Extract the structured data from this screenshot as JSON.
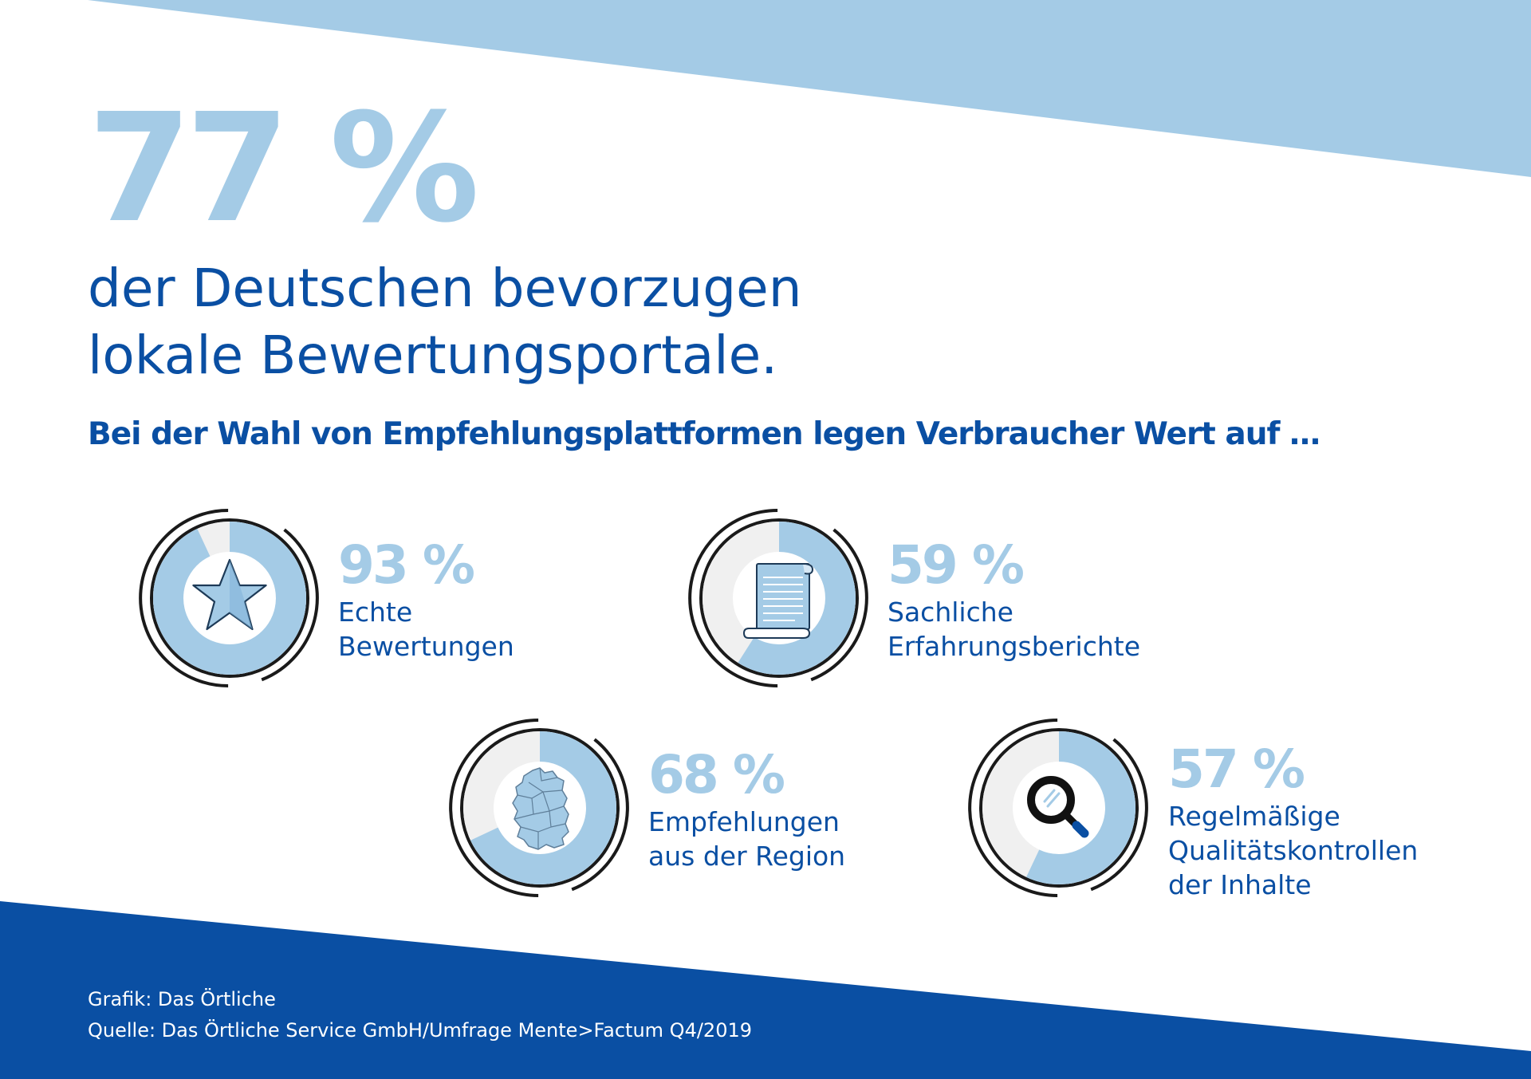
{
  "headline": {
    "value": "77 %",
    "lines": [
      "der Deutschen bevorzugen",
      "lokale Bewertungsportale."
    ]
  },
  "subheading": "Bei der Wahl von Empfehlungsplattformen legen Verbraucher Wert auf …",
  "colors": {
    "light_blue": "#a4cbe6",
    "dark_blue": "#0a4fa3",
    "ring_track": "#f0f0f0",
    "ring_outline": "#1a1a1a"
  },
  "chart_data": {
    "type": "donut",
    "unit": "%",
    "categories": [
      "Echte Bewertungen",
      "Sachliche Erfahrungsberichte",
      "Empfehlungen aus der Region",
      "Regelmäßige Qualitätskontrollen der Inhalte"
    ],
    "values": [
      93,
      59,
      68,
      57
    ]
  },
  "stats": [
    {
      "value": 93,
      "label": "93 %",
      "lines": [
        "Echte",
        "Bewertungen"
      ],
      "icon": "star-icon"
    },
    {
      "value": 59,
      "label": "59 %",
      "lines": [
        "Sachliche",
        "Erfahrungsberichte"
      ],
      "icon": "scroll-icon"
    },
    {
      "value": 68,
      "label": "68 %",
      "lines": [
        "Empfehlungen",
        "aus der Region"
      ],
      "icon": "germany-map-icon"
    },
    {
      "value": 57,
      "label": "57 %",
      "lines": [
        "Regelmäßige",
        "Qualitätskontrollen",
        "der Inhalte"
      ],
      "icon": "magnifier-icon"
    }
  ],
  "footer": {
    "grafik": "Grafik:  Das Örtliche",
    "quelle": "Quelle: Das Örtliche Service GmbH/Umfrage Mente>Factum Q4/2019"
  }
}
